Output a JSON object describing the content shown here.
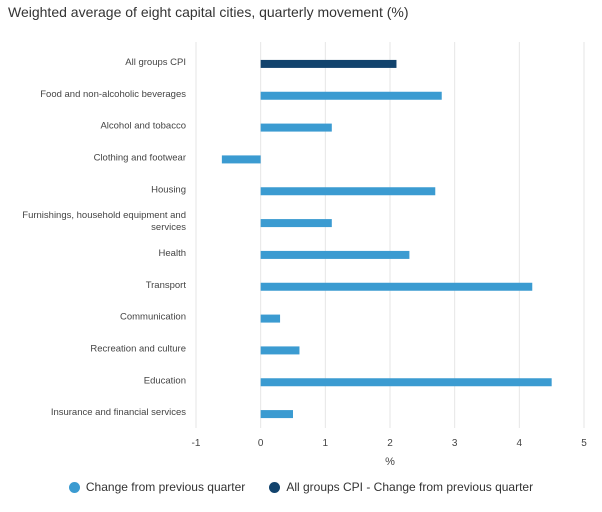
{
  "chart_data": {
    "type": "bar",
    "orientation": "horizontal",
    "title": "Weighted average of eight capital cities, quarterly movement (%)",
    "xlabel": "%",
    "xlim": [
      -1,
      5
    ],
    "xticks": [
      -1,
      0,
      1,
      2,
      3,
      4,
      5
    ],
    "grid": true,
    "legend_position": "bottom",
    "categories": [
      "All groups CPI",
      "Food and non-alcoholic beverages",
      "Alcohol and tobacco",
      "Clothing and footwear",
      "Housing",
      "Furnishings, household equipment and services",
      "Health",
      "Transport",
      "Communication",
      "Recreation and culture",
      "Education",
      "Insurance and financial services"
    ],
    "series": [
      {
        "name": "Change from previous quarter",
        "color": "#3b9bd1",
        "values": [
          null,
          2.8,
          1.1,
          -0.6,
          2.7,
          1.1,
          2.3,
          4.2,
          0.3,
          0.6,
          4.5,
          0.5
        ]
      },
      {
        "name": "All groups CPI - Change from previous quarter",
        "color": "#12436d",
        "values": [
          2.1,
          null,
          null,
          null,
          null,
          null,
          null,
          null,
          null,
          null,
          null,
          null
        ]
      }
    ]
  }
}
